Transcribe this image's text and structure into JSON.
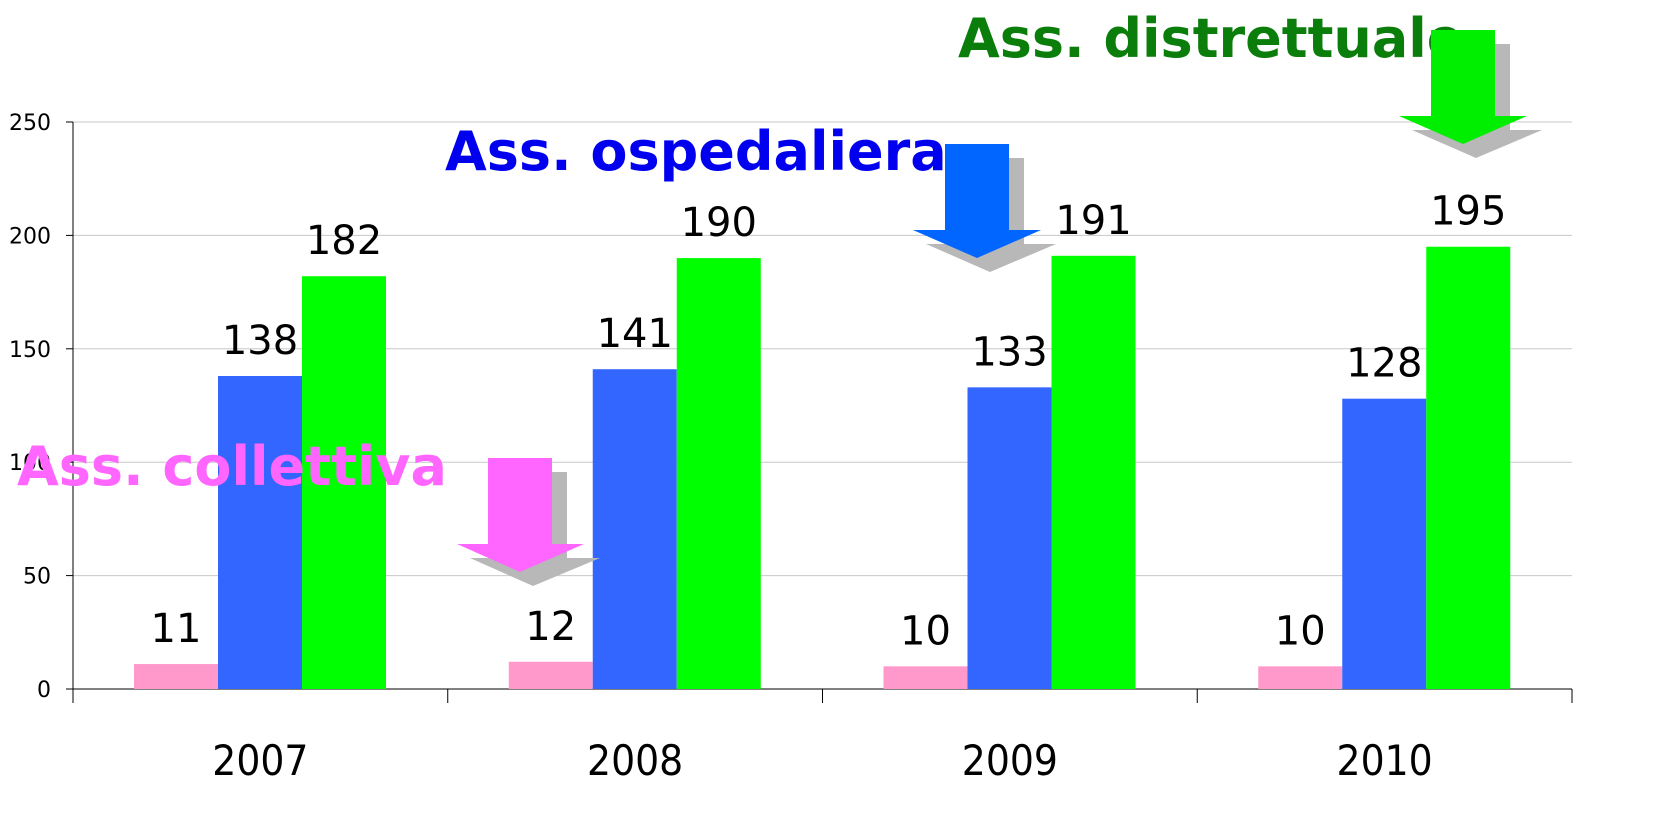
{
  "chart_data": {
    "type": "bar",
    "categories": [
      "2007",
      "2008",
      "2009",
      "2010"
    ],
    "series": [
      {
        "name": "Ass. collettiva",
        "color": "#ff99cc",
        "values": [
          11,
          12,
          10,
          10
        ]
      },
      {
        "name": "Ass. ospedaliera",
        "color": "#3366ff",
        "values": [
          138,
          141,
          133,
          128
        ]
      },
      {
        "name": "Ass. distrettuale",
        "color": "#00ff00",
        "values": [
          182,
          190,
          191,
          195
        ]
      }
    ],
    "ylim": [
      0,
      250
    ],
    "yticks": [
      0,
      50,
      100,
      150,
      200,
      250
    ],
    "grid": true
  }
}
